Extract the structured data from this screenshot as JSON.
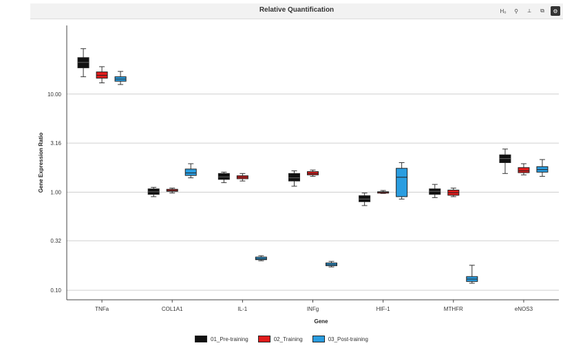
{
  "window": {
    "title": "Relative Quantification",
    "toolbar": [
      {
        "name": "hide-icon",
        "label": "H₀"
      },
      {
        "name": "tree-icon",
        "label": "⚲"
      },
      {
        "name": "axes-icon",
        "label": "⟂"
      },
      {
        "name": "copy-icon",
        "label": "⧉"
      },
      {
        "name": "settings-icon",
        "label": "⚙"
      }
    ]
  },
  "colors": {
    "01_Pre-training": "#111111",
    "02_Training": "#e01c1c",
    "03_Post-training": "#2a9de0"
  },
  "chart_data": {
    "type": "box",
    "title": "Relative Quantification",
    "xlabel": "Gene",
    "ylabel": "Gene Expression Ratio",
    "y_scale": "log",
    "ylim": [
      0.08,
      50
    ],
    "yticks": [
      0.1,
      0.32,
      1.0,
      3.16,
      10.0
    ],
    "ytick_labels": [
      "0.10",
      "0.32",
      "1.00",
      "3.16",
      "10.00"
    ],
    "grid": true,
    "legend_position": "bottom",
    "categories": [
      "TNFa",
      "COL1A1",
      "IL-1",
      "INFg",
      "HIF-1",
      "MTHFR",
      "eNOS3"
    ],
    "series": [
      {
        "name": "01_Pre-training",
        "boxes": [
          {
            "min": 15.0,
            "q1": 18.5,
            "median": 21.0,
            "q3": 23.5,
            "max": 29.0
          },
          {
            "min": 0.9,
            "q1": 0.95,
            "median": 1.01,
            "q3": 1.08,
            "max": 1.12
          },
          {
            "min": 1.25,
            "q1": 1.35,
            "median": 1.43,
            "q3": 1.55,
            "max": 1.6
          },
          {
            "min": 1.15,
            "q1": 1.3,
            "median": 1.4,
            "q3": 1.55,
            "max": 1.65
          },
          {
            "min": 0.73,
            "q1": 0.8,
            "median": 0.85,
            "q3": 0.92,
            "max": 0.98
          },
          {
            "min": 0.88,
            "q1": 0.95,
            "median": 1.02,
            "q3": 1.08,
            "max": 1.2
          },
          {
            "min": 1.55,
            "q1": 2.0,
            "median": 2.2,
            "q3": 2.4,
            "max": 2.75
          }
        ]
      },
      {
        "name": "02_Training",
        "boxes": [
          {
            "min": 13.0,
            "q1": 14.5,
            "median": 15.5,
            "q3": 16.8,
            "max": 19.0
          },
          {
            "min": 0.98,
            "q1": 1.02,
            "median": 1.04,
            "q3": 1.07,
            "max": 1.1
          },
          {
            "min": 1.3,
            "q1": 1.37,
            "median": 1.42,
            "q3": 1.47,
            "max": 1.55
          },
          {
            "min": 1.45,
            "q1": 1.5,
            "median": 1.55,
            "q3": 1.62,
            "max": 1.68
          },
          {
            "min": 0.97,
            "q1": 0.99,
            "median": 1.0,
            "q3": 1.01,
            "max": 1.04
          },
          {
            "min": 0.9,
            "q1": 0.93,
            "median": 0.99,
            "q3": 1.05,
            "max": 1.1
          },
          {
            "min": 1.5,
            "q1": 1.58,
            "median": 1.65,
            "q3": 1.78,
            "max": 1.95
          }
        ]
      },
      {
        "name": "03_Post-training",
        "boxes": [
          {
            "min": 12.5,
            "q1": 13.5,
            "median": 14.2,
            "q3": 15.0,
            "max": 17.0
          },
          {
            "min": 1.4,
            "q1": 1.48,
            "median": 1.57,
            "q3": 1.72,
            "max": 1.95
          },
          {
            "min": 0.2,
            "q1": 0.205,
            "median": 0.21,
            "q3": 0.218,
            "max": 0.225
          },
          {
            "min": 0.173,
            "q1": 0.178,
            "median": 0.183,
            "q3": 0.19,
            "max": 0.197
          },
          {
            "min": 0.85,
            "q1": 0.9,
            "median": 1.42,
            "q3": 1.75,
            "max": 2.0
          },
          {
            "min": 0.118,
            "q1": 0.123,
            "median": 0.13,
            "q3": 0.138,
            "max": 0.18
          },
          {
            "min": 1.45,
            "q1": 1.6,
            "median": 1.7,
            "q3": 1.82,
            "max": 2.15
          }
        ]
      }
    ]
  }
}
